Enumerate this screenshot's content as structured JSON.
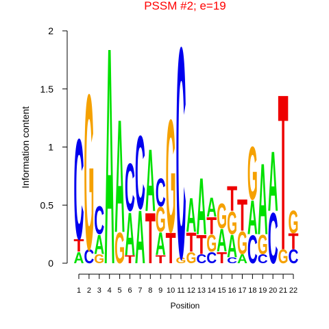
{
  "chart_data": {
    "type": "logo",
    "title": "PSSM #2; e=19",
    "xlabel": "Position",
    "ylabel": "Information content",
    "categories": [
      "1",
      "2",
      "3",
      "4",
      "5",
      "6",
      "7",
      "8",
      "9",
      "10",
      "11",
      "12",
      "13",
      "14",
      "15",
      "16",
      "17",
      "18",
      "19",
      "20",
      "21",
      "22"
    ],
    "ylim": [
      0,
      2
    ],
    "yticks": [
      0,
      0.5,
      1,
      1.5,
      2
    ],
    "series": [
      {
        "name": "A",
        "color": "#00E000",
        "values": [
          0.1,
          0,
          0.17,
          1.92,
          1.0,
          0.38,
          0.47,
          0.55,
          0.2,
          0,
          0,
          0.3,
          0.5,
          0.17,
          0.2,
          0.2,
          0.08,
          0.3,
          0.63,
          0.53,
          0,
          0
        ]
      },
      {
        "name": "C",
        "color": "#0000EE",
        "values": [
          0.89,
          0.12,
          0.25,
          0,
          0,
          0.42,
          0.65,
          0,
          0.25,
          0,
          1.87,
          0,
          0.08,
          0.1,
          0,
          0.05,
          0,
          0.25,
          0.08,
          0.45,
          0,
          0.12
        ]
      },
      {
        "name": "G",
        "color": "#F5A100",
        "values": [
          0,
          1.38,
          0.08,
          0,
          0.27,
          0,
          0,
          0,
          0.22,
          1.0,
          0.05,
          0.1,
          0,
          0.15,
          0.22,
          0.2,
          0.2,
          0.47,
          0.17,
          0,
          0.12,
          0.2
        ]
      },
      {
        "name": "T",
        "color": "#EE0000",
        "values": [
          0.11,
          0,
          0,
          0,
          0,
          0.07,
          0,
          0.45,
          0.07,
          0.27,
          0,
          0.17,
          0.17,
          0.15,
          0.1,
          0.22,
          0.28,
          0,
          0,
          0,
          1.38,
          0.14
        ]
      }
    ]
  }
}
